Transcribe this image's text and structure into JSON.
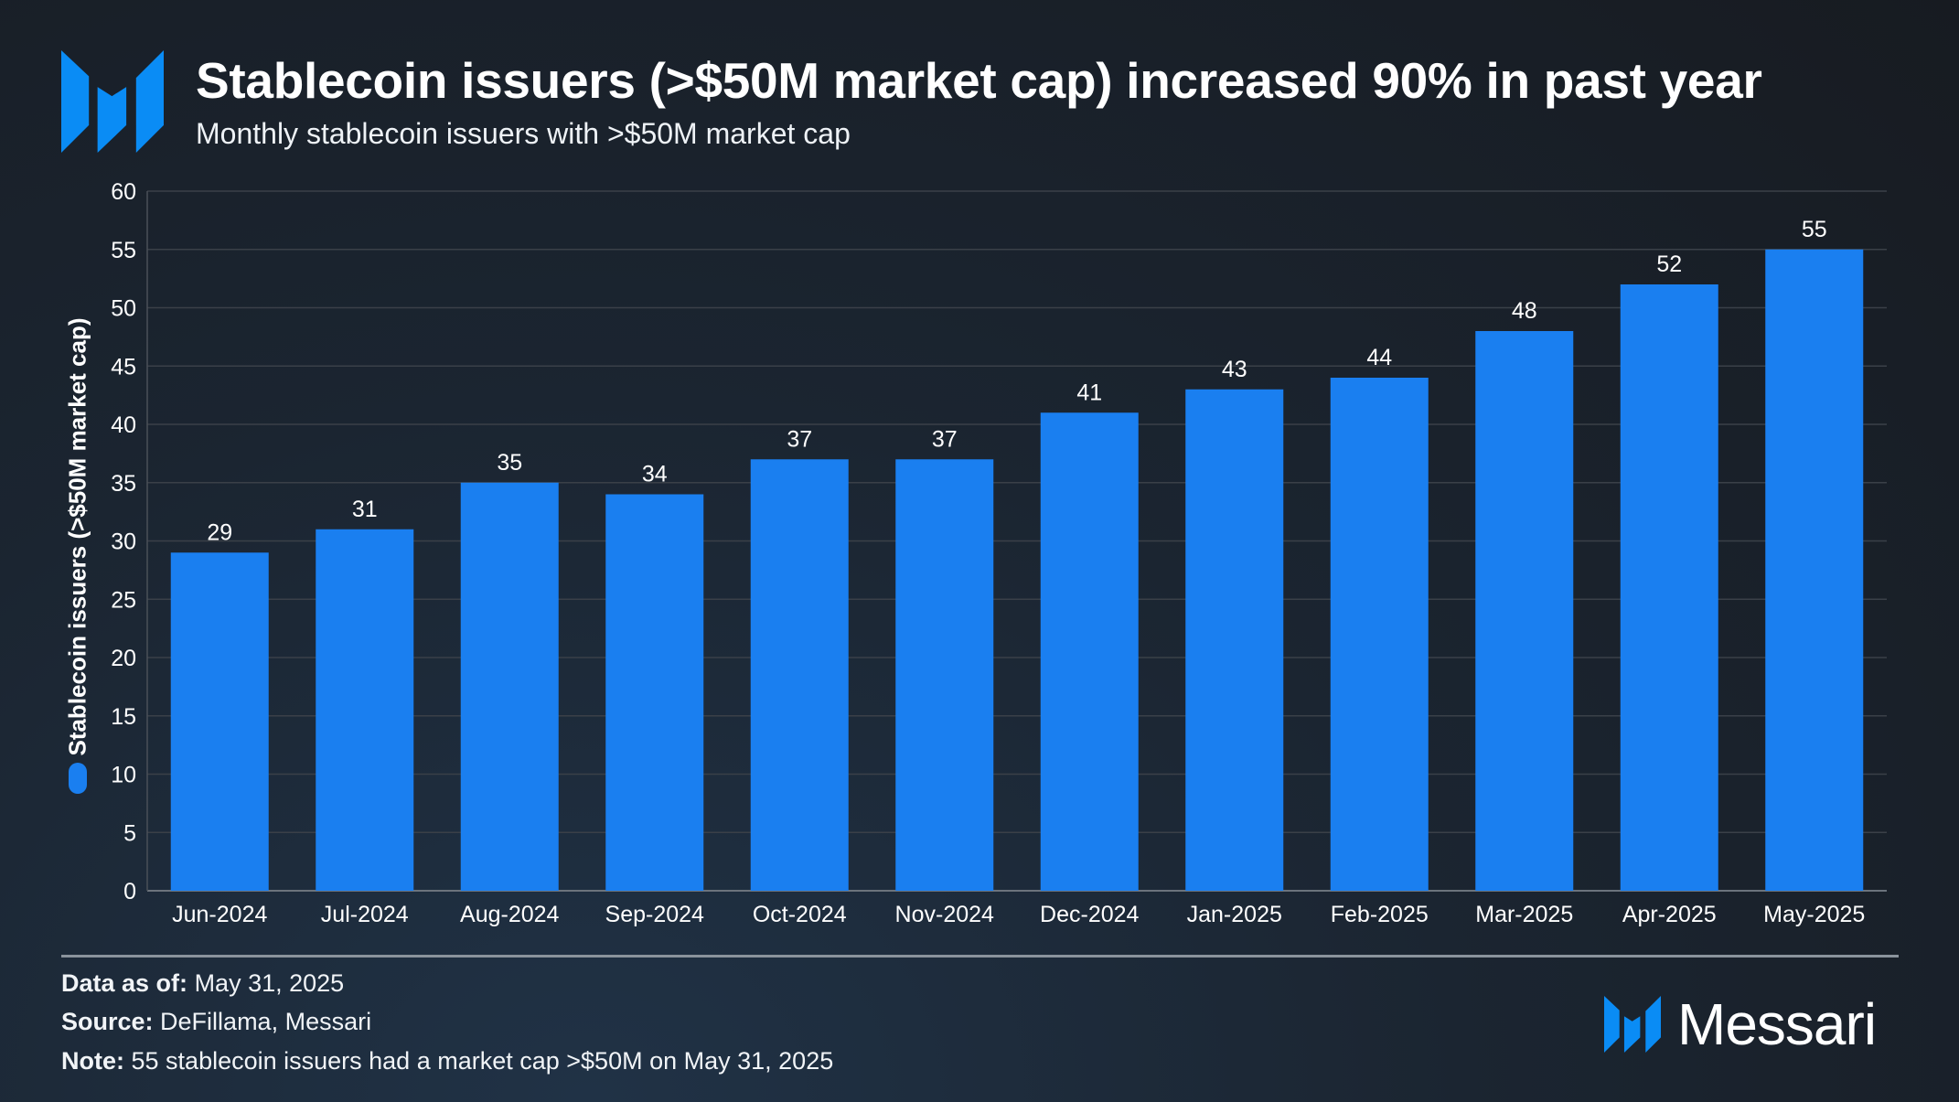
{
  "header": {
    "title": "Stablecoin issuers (>$50M market cap) increased 90% in past year",
    "subtitle": "Monthly stablecoin issuers with >$50M market cap",
    "logo": "messari-logo-icon"
  },
  "colors": {
    "bar": "#1a7ff0",
    "logo": "#0a8cf5",
    "grid": "#3a4048",
    "text": "#ffffff"
  },
  "chart_data": {
    "type": "bar",
    "title": "Stablecoin issuers (>$50M market cap) increased 90% in past year",
    "subtitle": "Monthly stablecoin issuers with >$50M market cap",
    "xlabel": "",
    "ylabel": "Stablecoin issuers (>$50M market cap)",
    "ylim": [
      0,
      60
    ],
    "yticks": [
      0,
      5,
      10,
      15,
      20,
      25,
      30,
      35,
      40,
      45,
      50,
      55,
      60
    ],
    "grid": true,
    "legend": "left (marker only)",
    "categories": [
      "Jun-2024",
      "Jul-2024",
      "Aug-2024",
      "Sep-2024",
      "Oct-2024",
      "Nov-2024",
      "Dec-2024",
      "Jan-2025",
      "Feb-2025",
      "Mar-2025",
      "Apr-2025",
      "May-2025"
    ],
    "values": [
      29,
      31,
      35,
      34,
      37,
      37,
      41,
      43,
      44,
      48,
      52,
      55
    ],
    "data_labels": true
  },
  "footer": {
    "data_as_of_label": "Data as of:",
    "data_as_of_value": "May 31, 2025",
    "source_label": "Source:",
    "source_value": "DeFillama, Messari",
    "note_label": "Note:",
    "note_value": "55 stablecoin issuers had a market cap >$50M on May 31, 2025",
    "brand": "Messari"
  }
}
